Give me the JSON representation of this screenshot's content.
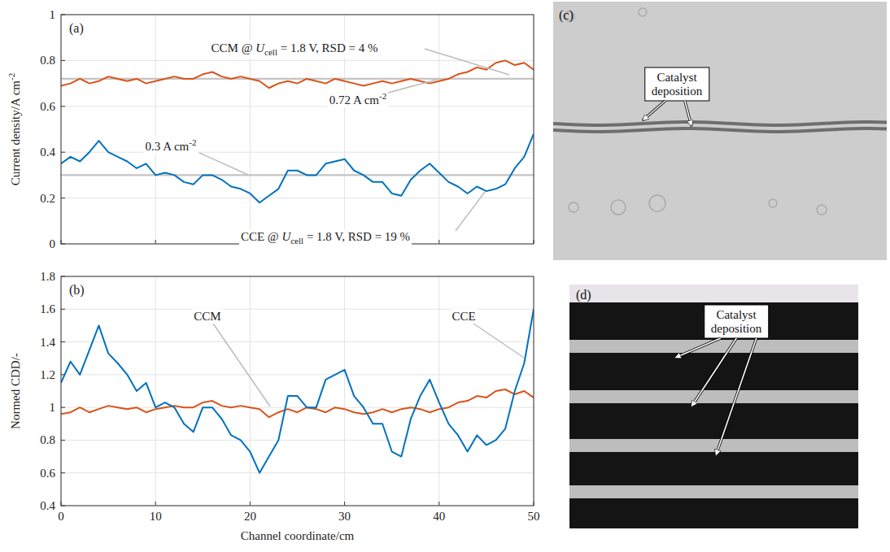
{
  "chart_data": [
    {
      "type": "line",
      "panel_label": "(a)",
      "y_label": {
        "text": "Current density/A cm",
        "sup": "-2"
      },
      "x": [
        0,
        1,
        2,
        3,
        4,
        5,
        6,
        7,
        8,
        9,
        10,
        11,
        12,
        13,
        14,
        15,
        16,
        17,
        18,
        19,
        20,
        21,
        22,
        23,
        24,
        25,
        26,
        27,
        28,
        29,
        30,
        31,
        32,
        33,
        34,
        35,
        36,
        37,
        38,
        39,
        40,
        41,
        42,
        43,
        44,
        45,
        46,
        47,
        48,
        49,
        50
      ],
      "xlim": [
        0,
        50
      ],
      "xticks": [
        0,
        10,
        20,
        30,
        40,
        50
      ],
      "ylim": [
        0,
        1
      ],
      "yticks": [
        0,
        0.2,
        0.4,
        0.6,
        0.8,
        1
      ],
      "grid": true,
      "tick_labels": "y",
      "series": [
        {
          "color": "#d95319",
          "values": [
            0.69,
            0.7,
            0.72,
            0.7,
            0.71,
            0.73,
            0.72,
            0.71,
            0.72,
            0.7,
            0.71,
            0.72,
            0.73,
            0.72,
            0.72,
            0.74,
            0.75,
            0.73,
            0.72,
            0.73,
            0.72,
            0.71,
            0.68,
            0.7,
            0.71,
            0.7,
            0.72,
            0.71,
            0.7,
            0.72,
            0.71,
            0.7,
            0.69,
            0.7,
            0.71,
            0.7,
            0.71,
            0.72,
            0.71,
            0.7,
            0.71,
            0.72,
            0.74,
            0.75,
            0.77,
            0.76,
            0.79,
            0.8,
            0.78,
            0.79,
            0.76
          ]
        },
        {
          "color": "#0072bd",
          "values": [
            0.35,
            0.38,
            0.36,
            0.4,
            0.45,
            0.4,
            0.38,
            0.36,
            0.33,
            0.35,
            0.3,
            0.31,
            0.3,
            0.27,
            0.26,
            0.3,
            0.3,
            0.28,
            0.25,
            0.24,
            0.22,
            0.18,
            0.21,
            0.24,
            0.32,
            0.32,
            0.3,
            0.3,
            0.35,
            0.36,
            0.37,
            0.32,
            0.3,
            0.27,
            0.27,
            0.22,
            0.21,
            0.28,
            0.32,
            0.35,
            0.31,
            0.27,
            0.25,
            0.22,
            0.25,
            0.23,
            0.24,
            0.26,
            0.33,
            0.38,
            0.48
          ]
        }
      ],
      "reference_lines": [
        {
          "value": 0.72,
          "label": {
            "text": "0.72 A cm",
            "sup": "-2"
          }
        },
        {
          "value": 0.3,
          "label": {
            "text": "0.3 A cm",
            "sup": "-2"
          }
        }
      ],
      "annotations": [
        {
          "text": "CCM @ ",
          "var": "U",
          "sub": "cell",
          "rest": " = 1.8 V, RSD = 4 %"
        },
        {
          "text": "CCE @ ",
          "var": "U",
          "sub": "cell",
          "rest": " = 1.8 V, RSD = 19 %"
        }
      ]
    },
    {
      "type": "line",
      "panel_label": "(b)",
      "x_label": {
        "text": "Channel coordinate/cm"
      },
      "y_label": {
        "text": "Normed CDD/-"
      },
      "x": [
        0,
        1,
        2,
        3,
        4,
        5,
        6,
        7,
        8,
        9,
        10,
        11,
        12,
        13,
        14,
        15,
        16,
        17,
        18,
        19,
        20,
        21,
        22,
        23,
        24,
        25,
        26,
        27,
        28,
        29,
        30,
        31,
        32,
        33,
        34,
        35,
        36,
        37,
        38,
        39,
        40,
        41,
        42,
        43,
        44,
        45,
        46,
        47,
        48,
        49,
        50
      ],
      "xlim": [
        0,
        50
      ],
      "xticks": [
        0,
        10,
        20,
        30,
        40,
        50
      ],
      "ylim": [
        0.4,
        1.8
      ],
      "yticks": [
        0.4,
        0.6,
        0.8,
        1,
        1.2,
        1.4,
        1.6,
        1.8
      ],
      "grid": true,
      "series": [
        {
          "name": "CCM",
          "color": "#d95319",
          "values": [
            0.96,
            0.97,
            1.0,
            0.97,
            0.99,
            1.01,
            1.0,
            0.99,
            1.0,
            0.97,
            0.99,
            1.0,
            1.01,
            1.0,
            1.0,
            1.03,
            1.04,
            1.01,
            1.0,
            1.01,
            1.0,
            0.99,
            0.94,
            0.97,
            0.99,
            0.97,
            1.0,
            0.99,
            0.97,
            1.0,
            0.99,
            0.97,
            0.96,
            0.97,
            0.99,
            0.97,
            0.99,
            1.0,
            0.99,
            0.97,
            0.99,
            1.0,
            1.03,
            1.04,
            1.07,
            1.06,
            1.1,
            1.11,
            1.08,
            1.1,
            1.06
          ]
        },
        {
          "name": "CCE",
          "color": "#0072bd",
          "values": [
            1.15,
            1.28,
            1.2,
            1.35,
            1.5,
            1.33,
            1.27,
            1.2,
            1.1,
            1.15,
            1.0,
            1.03,
            1.0,
            0.9,
            0.85,
            1.0,
            1.0,
            0.93,
            0.83,
            0.8,
            0.73,
            0.6,
            0.7,
            0.8,
            1.07,
            1.07,
            1.0,
            1.0,
            1.17,
            1.2,
            1.23,
            1.07,
            1.0,
            0.9,
            0.9,
            0.73,
            0.7,
            0.93,
            1.07,
            1.17,
            1.03,
            0.9,
            0.83,
            0.73,
            0.83,
            0.77,
            0.8,
            0.87,
            1.1,
            1.27,
            1.6
          ]
        }
      ]
    }
  ],
  "images": [
    {
      "panel_label": "(c)",
      "label": "Catalyst deposition"
    },
    {
      "panel_label": "(d)",
      "label": "Catalyst deposition"
    }
  ]
}
